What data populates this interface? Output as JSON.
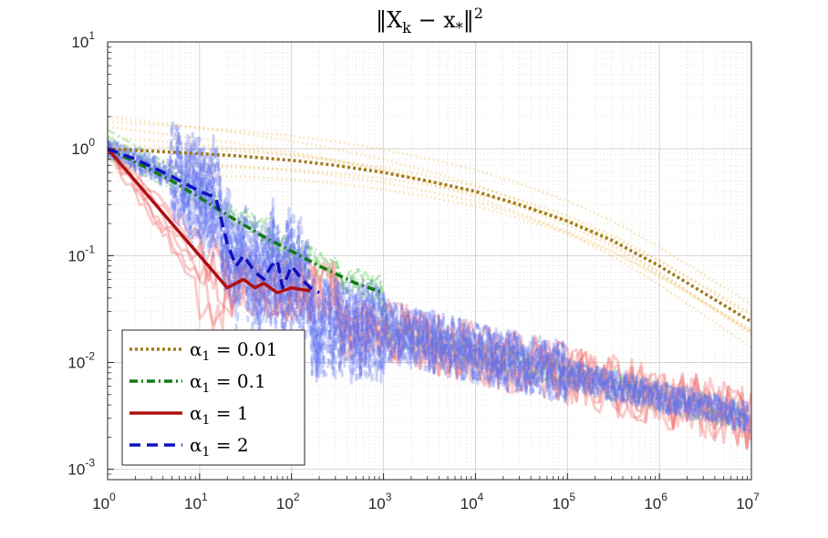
{
  "chart_data": {
    "type": "line",
    "title": "‖X_k − x_*‖²",
    "title_parts": {
      "open": "‖X",
      "sub1": "k",
      "mid": " − x",
      "sub2": "*",
      "close": "‖",
      "sup": "2"
    },
    "xscale": "log",
    "yscale": "log",
    "xlim": [
      1,
      10000000
    ],
    "ylim": [
      0.0008,
      10
    ],
    "grid": true,
    "legend_position": "bottom-left",
    "x_ticks": [
      {
        "base": "10",
        "exp": "0",
        "value": 1
      },
      {
        "base": "10",
        "exp": "1",
        "value": 10
      },
      {
        "base": "10",
        "exp": "2",
        "value": 100
      },
      {
        "base": "10",
        "exp": "3",
        "value": 1000
      },
      {
        "base": "10",
        "exp": "4",
        "value": 10000
      },
      {
        "base": "10",
        "exp": "5",
        "value": 100000
      },
      {
        "base": "10",
        "exp": "6",
        "value": 1000000
      },
      {
        "base": "10",
        "exp": "7",
        "value": 10000000
      }
    ],
    "y_ticks": [
      {
        "base": "10",
        "exp": "-3",
        "value": 0.001
      },
      {
        "base": "10",
        "exp": "-2",
        "value": 0.01
      },
      {
        "base": "10",
        "exp": "-1",
        "value": 0.1
      },
      {
        "base": "10",
        "exp": "0",
        "value": 1
      },
      {
        "base": "10",
        "exp": "1",
        "value": 10
      }
    ],
    "series": [
      {
        "name": "α1 = 0.01",
        "legend_lhs": "α",
        "legend_sub": "1",
        "legend_rhs": " = 0.01",
        "color": "#a07a1a",
        "faint_color": "#f0c060",
        "dash": "3,3",
        "x": [
          1,
          10,
          30,
          100,
          300,
          1000,
          3000,
          10000,
          30000,
          100000,
          300000,
          1000000,
          3000000,
          10000000
        ],
        "y": [
          1.0,
          0.9,
          0.85,
          0.78,
          0.7,
          0.6,
          0.5,
          0.4,
          0.3,
          0.21,
          0.14,
          0.08,
          0.045,
          0.024
        ]
      },
      {
        "name": "α1 = 0.1",
        "legend_lhs": "α",
        "legend_sub": "1",
        "legend_rhs": " = 0.1",
        "color": "#137a13",
        "faint_color": "#70d070",
        "dash": "9,4,2,4",
        "x": [
          1,
          2,
          5,
          10,
          20,
          50,
          100,
          200,
          500,
          1000
        ],
        "y": [
          1.0,
          0.75,
          0.5,
          0.35,
          0.24,
          0.15,
          0.11,
          0.08,
          0.055,
          0.045
        ]
      },
      {
        "name": "α1 = 1",
        "legend_lhs": "α",
        "legend_sub": "1",
        "legend_rhs": " = 1",
        "color": "#b01010",
        "faint_color": "#f07070",
        "dash": "",
        "x": [
          1,
          2,
          5,
          10,
          20,
          30,
          40,
          50,
          70,
          100,
          130,
          160
        ],
        "y": [
          1.0,
          0.5,
          0.2,
          0.1,
          0.05,
          0.06,
          0.05,
          0.055,
          0.045,
          0.05,
          0.048,
          0.047
        ]
      },
      {
        "name": "α1 = 2",
        "legend_lhs": "α",
        "legend_sub": "1",
        "legend_rhs": " = 2",
        "color": "#1010c0",
        "faint_color": "#6070f0",
        "dash": "12,7",
        "x": [
          1,
          2,
          5,
          10,
          15,
          20,
          25,
          30,
          40,
          50,
          60,
          70,
          80,
          100,
          130,
          160,
          200
        ],
        "y": [
          1.0,
          0.8,
          0.55,
          0.4,
          0.35,
          0.13,
          0.08,
          0.1,
          0.07,
          0.06,
          0.08,
          0.09,
          0.05,
          0.08,
          0.06,
          0.05,
          0.045
        ]
      }
    ],
    "common_trend": {
      "x": [
        1000,
        10000000
      ],
      "y": [
        0.02,
        0.003
      ]
    }
  }
}
